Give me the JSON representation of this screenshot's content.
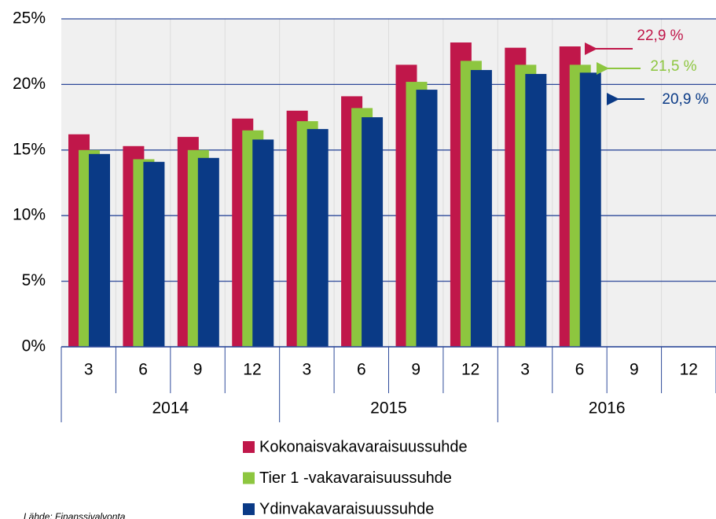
{
  "chart_data": {
    "type": "bar",
    "categories": [
      "3",
      "6",
      "9",
      "12",
      "3",
      "6",
      "9",
      "12",
      "3",
      "6",
      "9",
      "12"
    ],
    "year_groups": [
      "2014",
      "2015",
      "2016"
    ],
    "series": [
      {
        "name": "Kokonaisvakavaraisuussuhde",
        "color": "#c0174a",
        "values": [
          16.2,
          15.3,
          16.0,
          17.4,
          18.0,
          19.1,
          21.5,
          23.2,
          22.8,
          22.9,
          null,
          null
        ]
      },
      {
        "name": "Tier 1 -vakavaraisuussuhde",
        "color": "#8dc63f",
        "values": [
          15.0,
          14.3,
          15.0,
          16.5,
          17.2,
          18.2,
          20.2,
          21.8,
          21.5,
          21.5,
          null,
          null
        ]
      },
      {
        "name": "Ydinvakavaraisuussuhde",
        "color": "#0a3a86",
        "values": [
          14.7,
          14.1,
          14.4,
          15.8,
          16.6,
          17.5,
          19.6,
          21.1,
          20.8,
          20.9,
          null,
          null
        ]
      }
    ],
    "annotations": [
      {
        "text": "22,9 %",
        "color": "#c0174a"
      },
      {
        "text": "21,5 %",
        "color": "#8dc63f"
      },
      {
        "text": "20,9 %",
        "color": "#0a3a86"
      }
    ],
    "ylim": [
      0,
      25
    ],
    "yticks": [
      {
        "value": 0,
        "label": "0%"
      },
      {
        "value": 5,
        "label": "5%"
      },
      {
        "value": 10,
        "label": "10%"
      },
      {
        "value": 15,
        "label": "15%"
      },
      {
        "value": 20,
        "label": "20%"
      },
      {
        "value": 25,
        "label": "25%"
      }
    ],
    "grid": true,
    "source": "Lähde: Finanssivalvonta"
  }
}
